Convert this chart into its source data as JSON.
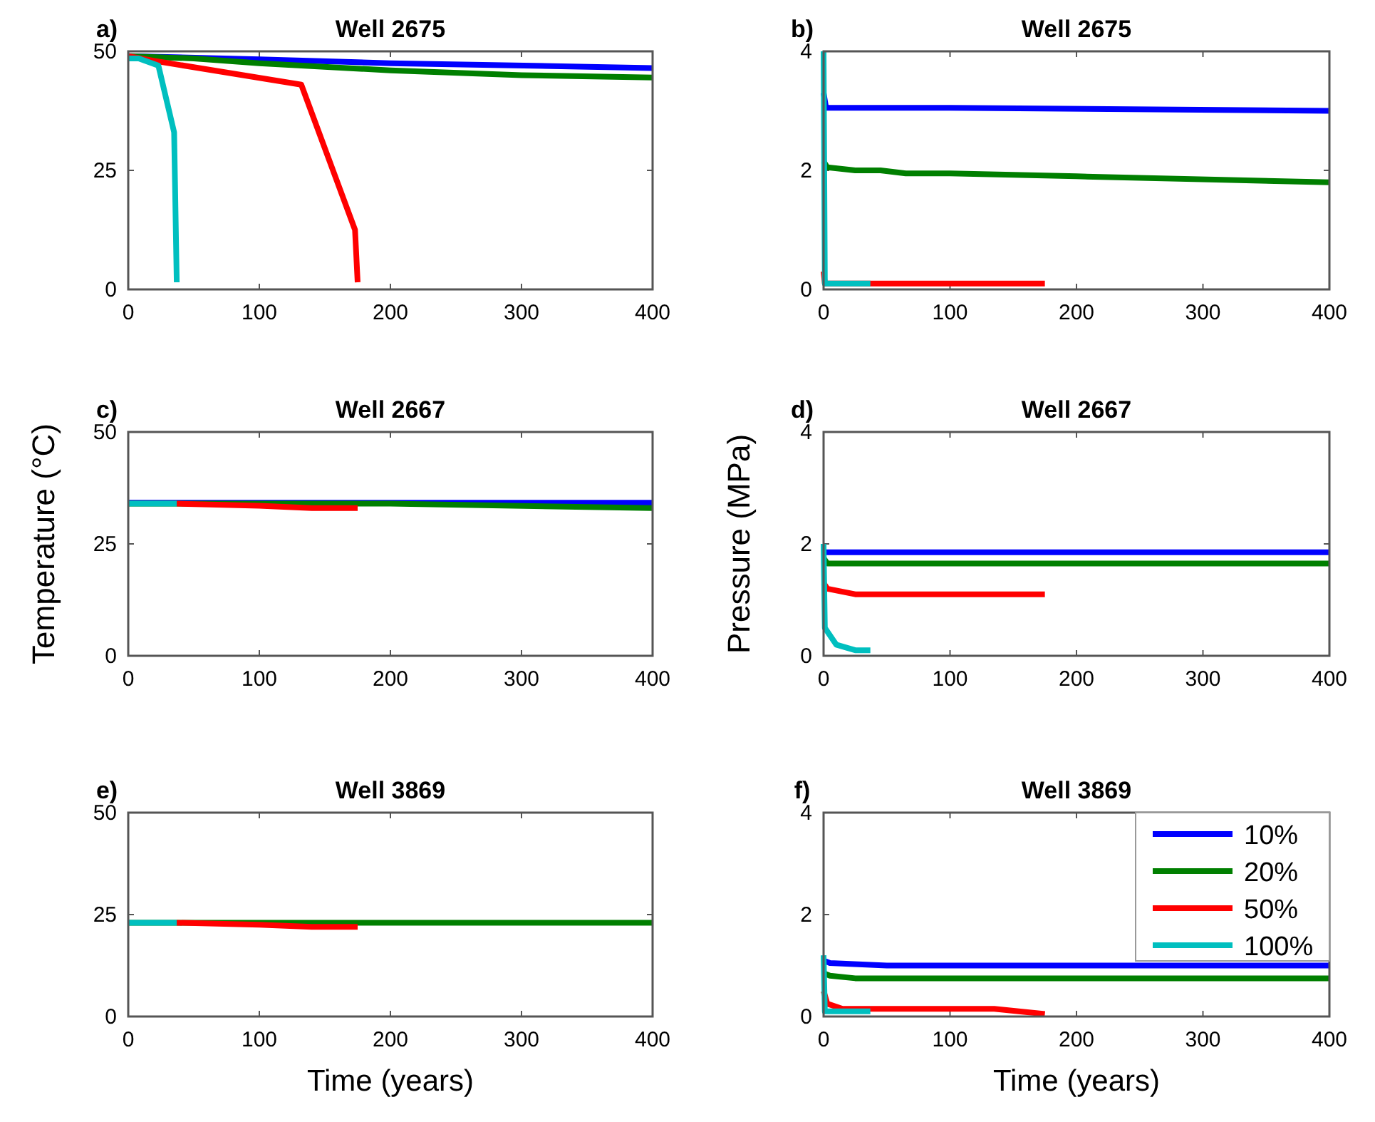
{
  "chart_data": [
    {
      "type": "line",
      "title": "Well 2675",
      "annotations": [
        "a)"
      ],
      "xlim": [
        0,
        400
      ],
      "xticks": [
        0,
        100,
        200,
        300,
        400
      ],
      "ylim": [
        0,
        50
      ],
      "yticks": [
        0,
        25,
        50
      ],
      "grid": false,
      "legend": false,
      "line_style": "solid",
      "marker": "none",
      "series": [
        {
          "color": "#0000ff",
          "x": [
            0,
            100,
            200,
            400
          ],
          "values": [
            49,
            48.3,
            47.5,
            46.5
          ]
        },
        {
          "color": "#007f00",
          "x": [
            0,
            50,
            100,
            200,
            300,
            400
          ],
          "values": [
            49,
            48.5,
            47.5,
            46,
            45,
            44.5
          ]
        },
        {
          "color": "#ff0000",
          "x": [
            0,
            20,
            132,
            173,
            175
          ],
          "values": [
            49,
            48,
            43,
            12.5,
            1.5
          ]
        },
        {
          "color": "#00bfbf",
          "x": [
            0,
            8,
            23,
            35,
            37
          ],
          "values": [
            48.5,
            48.5,
            47,
            33,
            1.5
          ]
        }
      ]
    },
    {
      "type": "line",
      "title": "Well 2675",
      "annotations": [
        "b)"
      ],
      "xlim": [
        0,
        400
      ],
      "xticks": [
        0,
        100,
        200,
        300,
        400
      ],
      "ylim": [
        0,
        4
      ],
      "yticks": [
        0,
        2,
        4
      ],
      "grid": false,
      "legend": false,
      "line_style": "solid",
      "marker": "none",
      "series": [
        {
          "color": "#0000ff",
          "x": [
            0,
            2,
            100,
            400
          ],
          "values": [
            3.3,
            3.05,
            3.05,
            3.0
          ]
        },
        {
          "color": "#007f00",
          "x": [
            0,
            3,
            25,
            45,
            65,
            100,
            200,
            400
          ],
          "values": [
            2.15,
            2.05,
            2.0,
            2.0,
            1.95,
            1.95,
            1.9,
            1.8
          ]
        },
        {
          "color": "#ff0000",
          "x": [
            0,
            1,
            175
          ],
          "values": [
            0.3,
            0.1,
            0.1
          ]
        },
        {
          "color": "#00bfbf",
          "x": [
            0,
            1,
            37
          ],
          "values": [
            4,
            0.1,
            0.1
          ]
        }
      ]
    },
    {
      "type": "line",
      "title": "Well 2667",
      "annotations": [
        "c)"
      ],
      "ylabel": "Temperature (°C)",
      "xlim": [
        0,
        400
      ],
      "xticks": [
        0,
        100,
        200,
        300,
        400
      ],
      "ylim": [
        0,
        50
      ],
      "yticks": [
        0,
        25,
        50
      ],
      "grid": false,
      "legend": false,
      "line_style": "solid",
      "marker": "none",
      "series": [
        {
          "color": "#0000ff",
          "x": [
            0,
            400
          ],
          "values": [
            34.2,
            34.2
          ]
        },
        {
          "color": "#007f00",
          "x": [
            0,
            200,
            400
          ],
          "values": [
            34,
            34,
            33
          ]
        },
        {
          "color": "#ff0000",
          "x": [
            37,
            100,
            140,
            175
          ],
          "values": [
            34,
            33.5,
            33,
            33
          ]
        },
        {
          "color": "#00bfbf",
          "x": [
            0,
            37
          ],
          "values": [
            34,
            34
          ]
        }
      ]
    },
    {
      "type": "line",
      "title": "Well 2667",
      "annotations": [
        "d)"
      ],
      "ylabel": "Pressure (MPa)",
      "xlim": [
        0,
        400
      ],
      "xticks": [
        0,
        100,
        200,
        300,
        400
      ],
      "ylim": [
        0,
        4
      ],
      "yticks": [
        0,
        2,
        4
      ],
      "grid": false,
      "legend": false,
      "line_style": "solid",
      "marker": "none",
      "series": [
        {
          "color": "#0000ff",
          "x": [
            0,
            400
          ],
          "values": [
            1.85,
            1.85
          ]
        },
        {
          "color": "#007f00",
          "x": [
            0,
            3,
            400
          ],
          "values": [
            1.75,
            1.65,
            1.65
          ]
        },
        {
          "color": "#ff0000",
          "x": [
            0,
            3,
            25,
            175
          ],
          "values": [
            1.3,
            1.2,
            1.1,
            1.1
          ]
        },
        {
          "color": "#00bfbf",
          "x": [
            0,
            1,
            10,
            25,
            37
          ],
          "values": [
            2.0,
            0.5,
            0.2,
            0.1,
            0.1
          ]
        }
      ]
    },
    {
      "type": "line",
      "title": "Well 3869",
      "annotations": [
        "e)"
      ],
      "xlabel": "Time (years)",
      "xlim": [
        0,
        400
      ],
      "xticks": [
        0,
        100,
        200,
        300,
        400
      ],
      "ylim": [
        0,
        50
      ],
      "yticks": [
        0,
        25,
        50
      ],
      "grid": false,
      "legend": false,
      "line_style": "solid",
      "marker": "none",
      "series": [
        {
          "color": "#007f00",
          "x": [
            0,
            400
          ],
          "values": [
            23,
            23
          ]
        },
        {
          "color": "#ff0000",
          "x": [
            37,
            100,
            140,
            175
          ],
          "values": [
            23,
            22.5,
            22,
            22
          ]
        },
        {
          "color": "#00bfbf",
          "x": [
            0,
            37
          ],
          "values": [
            23,
            23
          ]
        }
      ]
    },
    {
      "type": "line",
      "title": "Well 3869",
      "annotations": [
        "f)"
      ],
      "xlabel": "Time (years)",
      "xlim": [
        0,
        400
      ],
      "xticks": [
        0,
        100,
        200,
        300,
        400
      ],
      "ylim": [
        0,
        4
      ],
      "yticks": [
        0,
        2,
        4
      ],
      "grid": false,
      "legend": "top right",
      "line_style": "solid",
      "marker": "none",
      "series": [
        {
          "name": "10%",
          "color": "#0000ff",
          "x": [
            0,
            5,
            50,
            400
          ],
          "values": [
            1.1,
            1.05,
            1.0,
            1.0
          ]
        },
        {
          "name": "20%",
          "color": "#007f00",
          "x": [
            0,
            5,
            25,
            400
          ],
          "values": [
            0.85,
            0.8,
            0.75,
            0.75
          ]
        },
        {
          "name": "50%",
          "color": "#ff0000",
          "x": [
            0,
            3,
            15,
            135,
            175
          ],
          "values": [
            0.5,
            0.25,
            0.15,
            0.15,
            0.05
          ]
        },
        {
          "name": "100%",
          "color": "#00bfbf",
          "x": [
            0,
            1,
            37
          ],
          "values": [
            1.2,
            0.1,
            0.1
          ]
        }
      ]
    }
  ]
}
